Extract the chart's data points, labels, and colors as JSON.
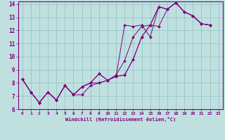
{
  "xlabel": "Windchill (Refroidissement éolien,°C)",
  "xlim": [
    -0.5,
    23.5
  ],
  "ylim": [
    6,
    14.2
  ],
  "xticks": [
    0,
    1,
    2,
    3,
    4,
    5,
    6,
    7,
    8,
    9,
    10,
    11,
    12,
    13,
    14,
    15,
    16,
    17,
    18,
    19,
    20,
    21,
    22,
    23
  ],
  "yticks": [
    6,
    7,
    8,
    9,
    10,
    11,
    12,
    13,
    14
  ],
  "line_color": "#800080",
  "bg_color": "#C0E0E0",
  "grid_color": "#90C0C0",
  "lines": [
    {
      "x": [
        0,
        1,
        2,
        3,
        4,
        5,
        6,
        7,
        8,
        9,
        10,
        11,
        12,
        13,
        14,
        15,
        16,
        17,
        18,
        19,
        20,
        21,
        22
      ],
      "y": [
        8.3,
        7.3,
        6.5,
        7.3,
        6.7,
        7.8,
        7.1,
        7.1,
        7.8,
        8.0,
        8.2,
        8.5,
        12.4,
        12.3,
        12.4,
        11.5,
        13.8,
        13.6,
        14.1,
        13.4,
        13.1,
        12.5,
        12.4
      ]
    },
    {
      "x": [
        0,
        1,
        2,
        3,
        4,
        5,
        6,
        7,
        8,
        9,
        10,
        11,
        12,
        13,
        14,
        15,
        16,
        17,
        18,
        19,
        20,
        21,
        22
      ],
      "y": [
        8.3,
        7.3,
        6.5,
        7.3,
        6.7,
        7.8,
        7.1,
        7.7,
        8.0,
        8.0,
        8.2,
        8.6,
        9.7,
        11.5,
        12.3,
        12.4,
        13.8,
        13.6,
        14.1,
        13.4,
        13.1,
        12.5,
        12.4
      ]
    },
    {
      "x": [
        0,
        1,
        2,
        3,
        4,
        5,
        6,
        7,
        8,
        9,
        10,
        11,
        12,
        13,
        14,
        15,
        16,
        17,
        18,
        19,
        20,
        21,
        22
      ],
      "y": [
        8.3,
        7.3,
        6.5,
        7.3,
        6.7,
        7.8,
        7.1,
        7.7,
        8.0,
        8.7,
        8.2,
        8.5,
        8.6,
        9.8,
        11.5,
        12.4,
        12.3,
        13.6,
        14.1,
        13.4,
        13.1,
        12.5,
        12.4
      ]
    },
    {
      "x": [
        0,
        1,
        2,
        3,
        4,
        5,
        6,
        7,
        8,
        9,
        10,
        11,
        12,
        13,
        14,
        15,
        16,
        17,
        18,
        19,
        20,
        21,
        22
      ],
      "y": [
        8.3,
        7.3,
        6.5,
        7.3,
        6.7,
        7.8,
        7.1,
        7.7,
        8.0,
        8.7,
        8.2,
        8.5,
        8.6,
        9.8,
        11.5,
        12.4,
        13.8,
        13.6,
        14.1,
        13.4,
        13.1,
        12.5,
        12.4
      ]
    }
  ]
}
